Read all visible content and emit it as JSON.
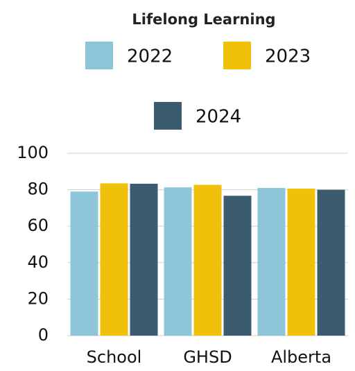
{
  "chart_data": {
    "type": "bar",
    "title": "Lifelong Learning",
    "categories": [
      "School",
      "GHSD",
      "Alberta"
    ],
    "series": [
      {
        "name": "2022",
        "color": "#8ec5d8",
        "values": [
          79.0,
          81.3,
          81.0
        ]
      },
      {
        "name": "2023",
        "color": "#f0c10a",
        "values": [
          83.5,
          82.7,
          80.6
        ]
      },
      {
        "name": "2024",
        "color": "#3b5c6e",
        "values": [
          83.3,
          76.7,
          80.0
        ]
      }
    ],
    "ylim": [
      0,
      100
    ],
    "yticks": [
      0,
      20,
      40,
      60,
      80,
      100
    ],
    "grid": true
  }
}
